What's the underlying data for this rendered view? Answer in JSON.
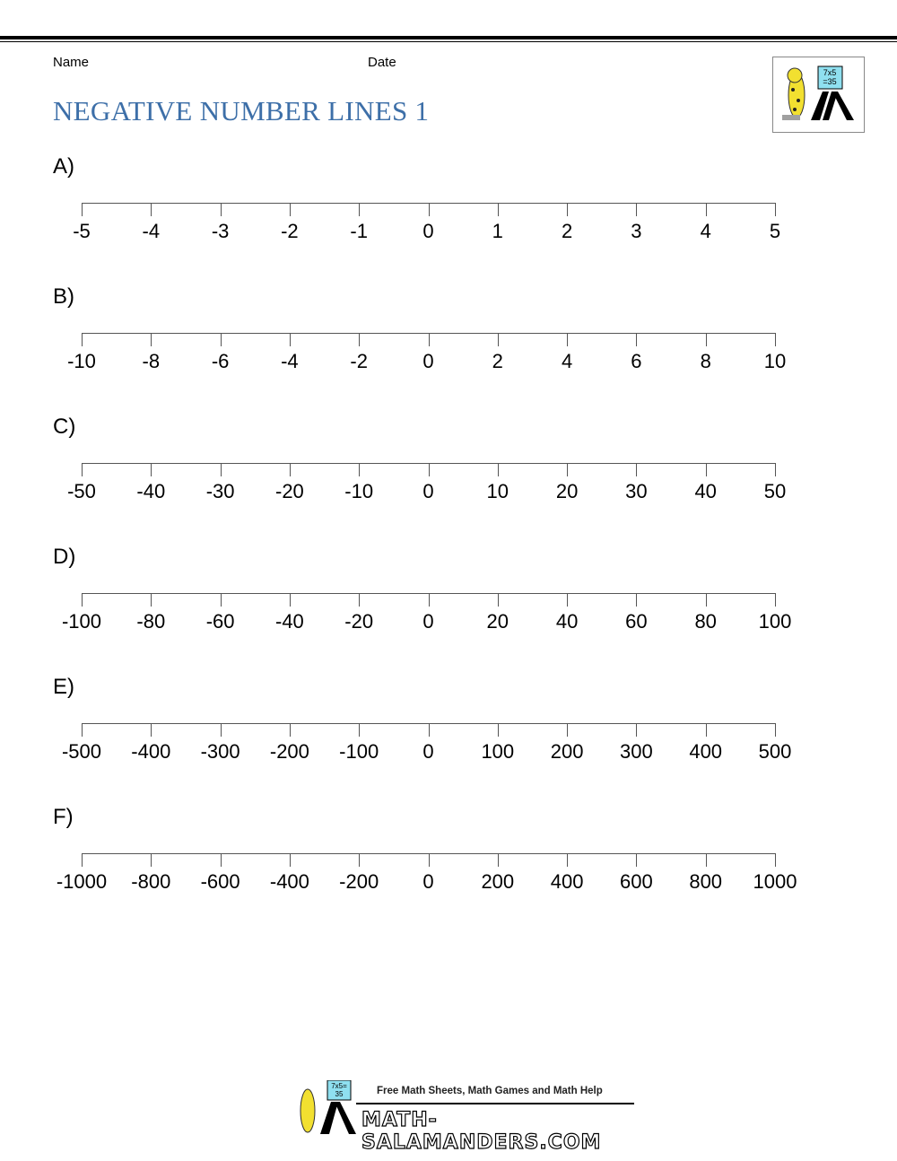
{
  "header": {
    "name_label": "Name",
    "date_label": "Date",
    "title": "NEGATIVE NUMBER LINES 1",
    "logo_text": "7x5 =35"
  },
  "number_lines": [
    {
      "label": "A)",
      "ticks": [
        "-5",
        "-4",
        "-3",
        "-2",
        "-1",
        "0",
        "1",
        "2",
        "3",
        "4",
        "5"
      ]
    },
    {
      "label": "B)",
      "ticks": [
        "-10",
        "-8",
        "-6",
        "-4",
        "-2",
        "0",
        "2",
        "4",
        "6",
        "8",
        "10"
      ]
    },
    {
      "label": "C)",
      "ticks": [
        "-50",
        "-40",
        "-30",
        "-20",
        "-10",
        "0",
        "10",
        "20",
        "30",
        "40",
        "50"
      ]
    },
    {
      "label": "D)",
      "ticks": [
        "-100",
        "-80",
        "-60",
        "-40",
        "-20",
        "0",
        "20",
        "40",
        "60",
        "80",
        "100"
      ]
    },
    {
      "label": "E)",
      "ticks": [
        "-500",
        "-400",
        "-300",
        "-200",
        "-100",
        "0",
        "100",
        "200",
        "300",
        "400",
        "500"
      ]
    },
    {
      "label": "F)",
      "ticks": [
        "-1000",
        "-800",
        "-600",
        "-400",
        "-200",
        "0",
        "200",
        "400",
        "600",
        "800",
        "1000"
      ]
    }
  ],
  "footer": {
    "tagline": "Free Math Sheets, Math Games and Math Help",
    "site": "MATH-SALAMANDERS.COM",
    "logo_text": "7x5= 35"
  },
  "colors": {
    "title": "#3d6fa8",
    "logo_board": "#8fe0f0",
    "salamander": "#f2e030"
  }
}
